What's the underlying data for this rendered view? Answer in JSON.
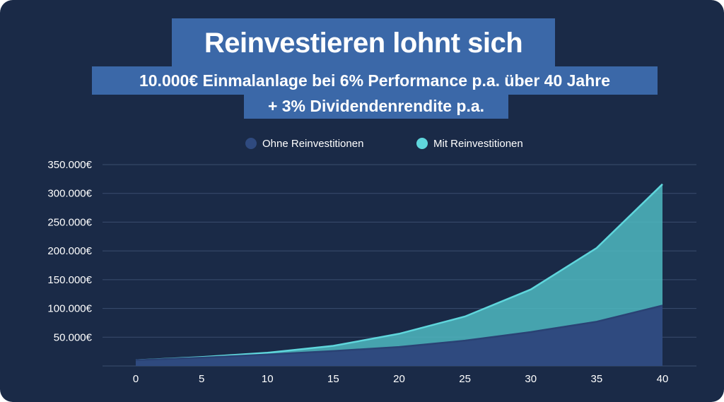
{
  "header": {
    "title": "Reinvestieren lohnt sich",
    "subtitle_line1": "10.000€ Einmalanlage bei 6% Performance p.a. über 40 Jahre",
    "subtitle_line2": "+ 3% Dividendenrendite p.a."
  },
  "colors": {
    "background": "#1a2a47",
    "title_box": "#3b68a8",
    "ohne": "#2f4a7f",
    "mit": "#5fd6dc"
  },
  "chart_data": {
    "type": "area",
    "x": [
      0,
      5,
      10,
      15,
      20,
      25,
      30,
      35,
      40
    ],
    "series": [
      {
        "name": "Ohne Reinvestitionen",
        "values": [
          10000,
          14500,
          20000,
          26000,
          33000,
          44000,
          59000,
          77000,
          105000
        ]
      },
      {
        "name": "Mit Reinvestitionen",
        "values": [
          10000,
          15500,
          23000,
          35000,
          56000,
          86000,
          133000,
          205000,
          316000
        ]
      }
    ],
    "x_ticks": [
      "0",
      "5",
      "10",
      "15",
      "20",
      "25",
      "30",
      "35",
      "40"
    ],
    "y_ticks": [
      {
        "value": 50000,
        "label": "50.000€"
      },
      {
        "value": 100000,
        "label": "100.000€"
      },
      {
        "value": 150000,
        "label": "150.000€"
      },
      {
        "value": 200000,
        "label": "200.000€"
      },
      {
        "value": 250000,
        "label": "250.000€"
      },
      {
        "value": 300000,
        "label": "300.000€"
      },
      {
        "value": 350000,
        "label": "350.000€"
      }
    ],
    "xlim": [
      0,
      40
    ],
    "ylim": [
      0,
      350000
    ],
    "grid": true,
    "legend_position": "top-center"
  }
}
